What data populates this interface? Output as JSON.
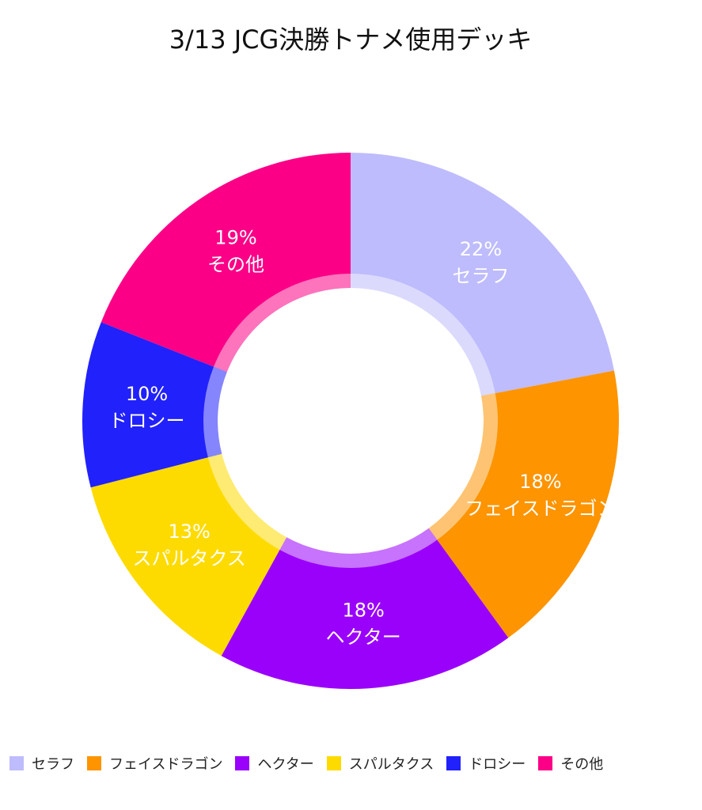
{
  "chart_data": {
    "type": "donut",
    "title": "3/13 JCG決勝トナメ使用デッキ",
    "categories": [
      "セラフ",
      "フェイスドラゴン",
      "ヘクター",
      "スパルタクス",
      "ドロシー",
      "その他"
    ],
    "values": [
      22,
      18,
      18,
      13,
      10,
      19
    ],
    "value_labels": [
      "22%",
      "18%",
      "18%",
      "13%",
      "10%",
      "19%"
    ],
    "colors": [
      "#bebcfc",
      "#fd9400",
      "#9a01fb",
      "#fedb00",
      "#2121fb",
      "#fb0086"
    ]
  }
}
